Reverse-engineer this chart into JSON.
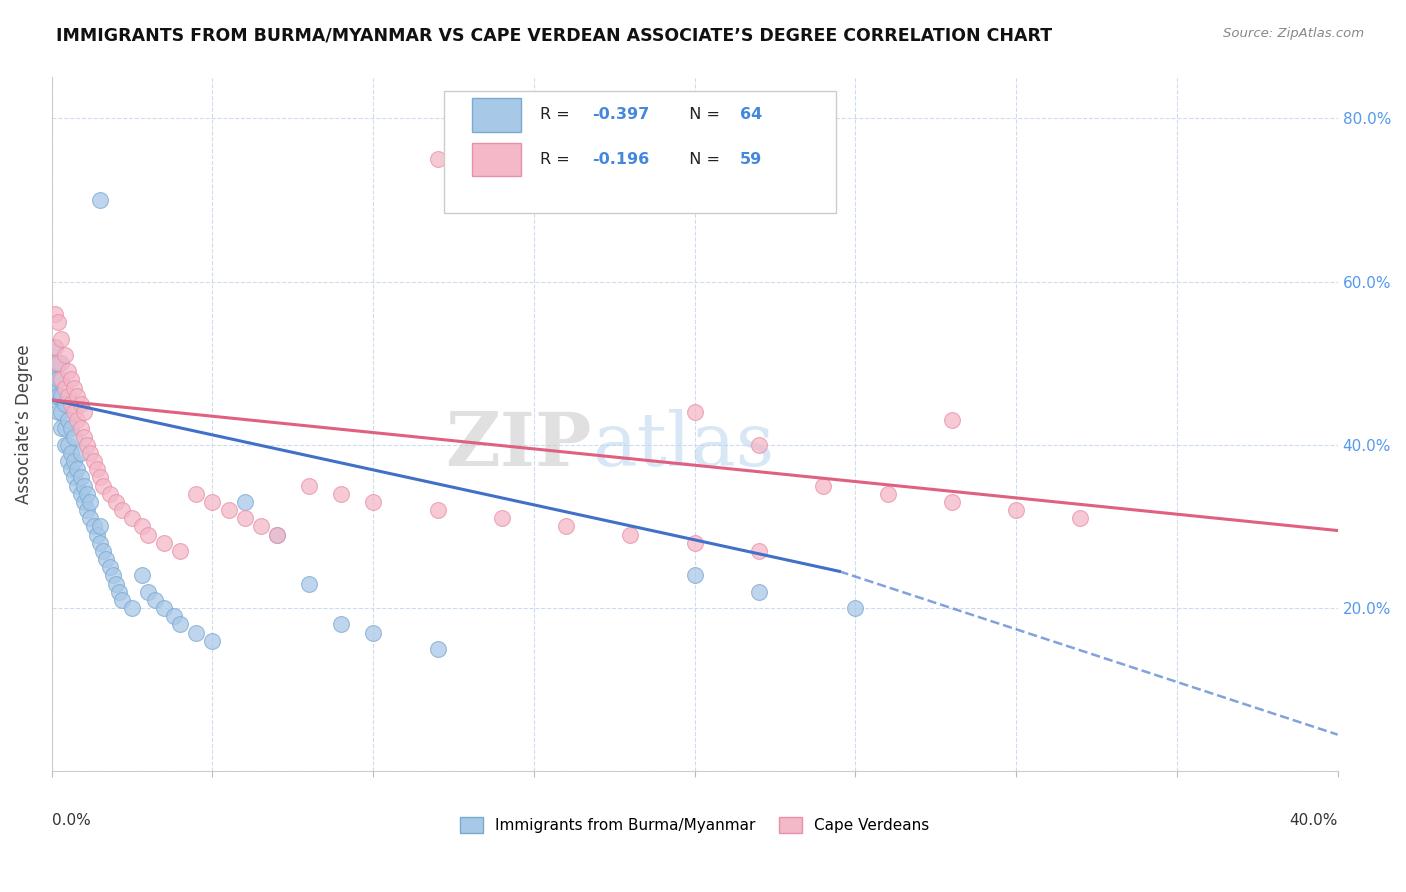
{
  "title": "IMMIGRANTS FROM BURMA/MYANMAR VS CAPE VERDEAN ASSOCIATE’S DEGREE CORRELATION CHART",
  "source": "Source: ZipAtlas.com",
  "ylabel": "Associate’s Degree",
  "xmin": 0.0,
  "xmax": 0.4,
  "ymin": 0.0,
  "ymax": 0.85,
  "blue_R": -0.397,
  "blue_N": 64,
  "pink_R": -0.196,
  "pink_N": 59,
  "blue_color": "#a8c8e8",
  "pink_color": "#f4b8c8",
  "blue_edge": "#7aaad0",
  "pink_edge": "#e890a8",
  "blue_line_color": "#4070c8",
  "pink_line_color": "#e06080",
  "text_blue": "#4488dd",
  "right_ytick_color": "#5599ee",
  "legend_blue_label": "Immigrants from Burma/Myanmar",
  "legend_pink_label": "Cape Verdeans",
  "blue_x": [
    0.001,
    0.001,
    0.001,
    0.001,
    0.002,
    0.002,
    0.002,
    0.003,
    0.003,
    0.003,
    0.003,
    0.004,
    0.004,
    0.004,
    0.005,
    0.005,
    0.005,
    0.006,
    0.006,
    0.006,
    0.007,
    0.007,
    0.007,
    0.008,
    0.008,
    0.009,
    0.009,
    0.009,
    0.01,
    0.01,
    0.011,
    0.011,
    0.012,
    0.012,
    0.013,
    0.014,
    0.015,
    0.015,
    0.016,
    0.017,
    0.018,
    0.019,
    0.02,
    0.021,
    0.022,
    0.025,
    0.028,
    0.03,
    0.032,
    0.035,
    0.038,
    0.04,
    0.045,
    0.05,
    0.06,
    0.07,
    0.08,
    0.09,
    0.1,
    0.12,
    0.015,
    0.2,
    0.22,
    0.25
  ],
  "blue_y": [
    0.46,
    0.48,
    0.5,
    0.52,
    0.44,
    0.46,
    0.48,
    0.42,
    0.44,
    0.46,
    0.5,
    0.4,
    0.42,
    0.45,
    0.38,
    0.4,
    0.43,
    0.37,
    0.39,
    0.42,
    0.36,
    0.38,
    0.41,
    0.35,
    0.37,
    0.34,
    0.36,
    0.39,
    0.33,
    0.35,
    0.32,
    0.34,
    0.31,
    0.33,
    0.3,
    0.29,
    0.28,
    0.3,
    0.27,
    0.26,
    0.25,
    0.24,
    0.23,
    0.22,
    0.21,
    0.2,
    0.24,
    0.22,
    0.21,
    0.2,
    0.19,
    0.18,
    0.17,
    0.16,
    0.33,
    0.29,
    0.23,
    0.18,
    0.17,
    0.15,
    0.7,
    0.24,
    0.22,
    0.2
  ],
  "pink_x": [
    0.001,
    0.001,
    0.002,
    0.002,
    0.003,
    0.003,
    0.004,
    0.004,
    0.005,
    0.005,
    0.006,
    0.006,
    0.007,
    0.007,
    0.008,
    0.008,
    0.009,
    0.009,
    0.01,
    0.01,
    0.011,
    0.012,
    0.013,
    0.014,
    0.015,
    0.016,
    0.018,
    0.02,
    0.022,
    0.025,
    0.028,
    0.03,
    0.035,
    0.04,
    0.045,
    0.05,
    0.055,
    0.06,
    0.065,
    0.07,
    0.08,
    0.09,
    0.1,
    0.12,
    0.14,
    0.16,
    0.18,
    0.2,
    0.22,
    0.12,
    0.14,
    0.2,
    0.22,
    0.24,
    0.26,
    0.28,
    0.3,
    0.32,
    0.28
  ],
  "pink_y": [
    0.52,
    0.56,
    0.5,
    0.55,
    0.48,
    0.53,
    0.47,
    0.51,
    0.46,
    0.49,
    0.45,
    0.48,
    0.44,
    0.47,
    0.43,
    0.46,
    0.42,
    0.45,
    0.41,
    0.44,
    0.4,
    0.39,
    0.38,
    0.37,
    0.36,
    0.35,
    0.34,
    0.33,
    0.32,
    0.31,
    0.3,
    0.29,
    0.28,
    0.27,
    0.34,
    0.33,
    0.32,
    0.31,
    0.3,
    0.29,
    0.35,
    0.34,
    0.33,
    0.32,
    0.31,
    0.3,
    0.29,
    0.28,
    0.27,
    0.75,
    0.7,
    0.44,
    0.4,
    0.35,
    0.34,
    0.33,
    0.32,
    0.31,
    0.43
  ],
  "blue_line_x0": 0.0,
  "blue_line_x_solid_end": 0.245,
  "blue_line_x_dashed_end": 0.4,
  "blue_line_y0": 0.455,
  "blue_line_y_solid_end": 0.245,
  "blue_line_y_dashed_end": 0.045,
  "pink_line_x0": 0.0,
  "pink_line_x1": 0.4,
  "pink_line_y0": 0.455,
  "pink_line_y1": 0.295
}
